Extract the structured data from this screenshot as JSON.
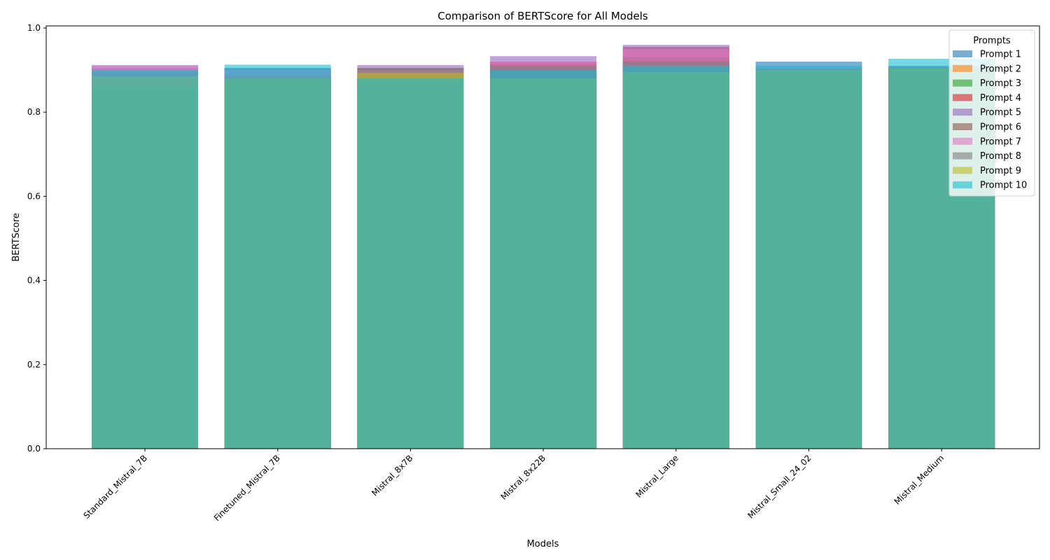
{
  "chart_data": {
    "type": "bar",
    "title": "Comparison of BERTScore for All Models",
    "xlabel": "Models",
    "ylabel": "BERTScore",
    "ylim": [
      0,
      1.0
    ],
    "yticks": [
      "0.0",
      "0.2",
      "0.4",
      "0.6",
      "0.8",
      "1.0"
    ],
    "grid": false,
    "bar_mode": "overlaid",
    "categories": [
      "Standard_Mistral_7B",
      "Finetuned_Mistral_7B",
      "Mistral_8x7B",
      "Mistral_8x22B",
      "Mistral_Large",
      "Mistral_Small_24_02",
      "Mistral_Medium"
    ],
    "legend": {
      "title": "Prompts",
      "placement": "top-right"
    },
    "series": [
      {
        "name": "Prompt 1",
        "color": "#1f77b4",
        "values": [
          0.905,
          0.905,
          0.88,
          0.902,
          0.905,
          0.92,
          0.91
        ]
      },
      {
        "name": "Prompt 2",
        "color": "#ff7f0e",
        "values": [
          0.88,
          0.88,
          0.89,
          0.875,
          0.89,
          0.9,
          0.905
        ]
      },
      {
        "name": "Prompt 3",
        "color": "#2ca02c",
        "values": [
          0.9,
          0.882,
          0.86,
          0.873,
          0.892,
          0.898,
          0.905
        ]
      },
      {
        "name": "Prompt 4",
        "color": "#d62728",
        "values": [
          0.89,
          0.885,
          0.88,
          0.92,
          0.955,
          0.9,
          0.9
        ]
      },
      {
        "name": "Prompt 5",
        "color": "#9467bd",
        "values": [
          0.912,
          0.905,
          0.912,
          0.933,
          0.96,
          0.9,
          0.908
        ]
      },
      {
        "name": "Prompt 6",
        "color": "#8c564b",
        "values": [
          0.895,
          0.89,
          0.905,
          0.915,
          0.93,
          0.905,
          0.905
        ]
      },
      {
        "name": "Prompt 7",
        "color": "#e377c2",
        "values": [
          0.91,
          0.9,
          0.9,
          0.92,
          0.95,
          0.905,
          0.905
        ]
      },
      {
        "name": "Prompt 8",
        "color": "#7f7f7f",
        "values": [
          0.86,
          0.88,
          0.905,
          0.91,
          0.92,
          0.9,
          0.905
        ]
      },
      {
        "name": "Prompt 9",
        "color": "#bcbd22",
        "values": [
          0.885,
          0.88,
          0.893,
          0.88,
          0.895,
          0.9,
          0.905
        ]
      },
      {
        "name": "Prompt 10",
        "color": "#17becf",
        "values": [
          0.9,
          0.913,
          0.88,
          0.9,
          0.91,
          0.91,
          0.927
        ]
      }
    ]
  }
}
